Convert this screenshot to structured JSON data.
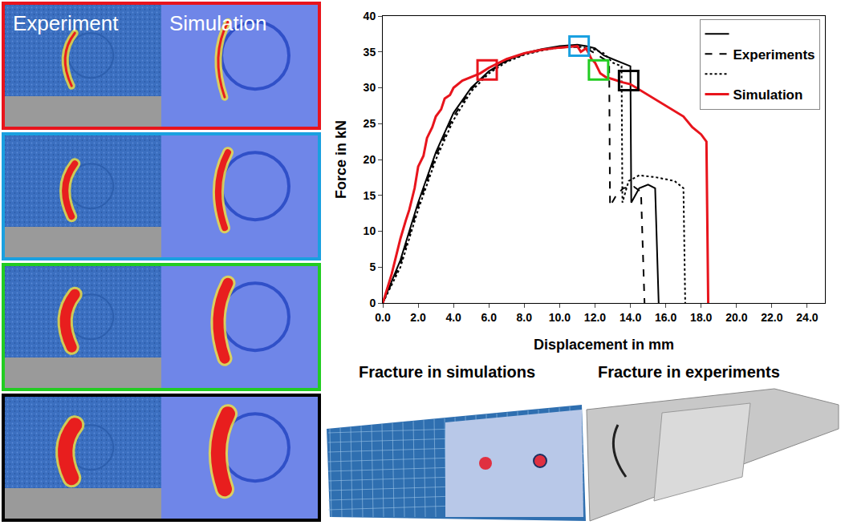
{
  "chart_data": {
    "type": "line",
    "xlabel": "Displacement in mm",
    "ylabel": "Force in kN",
    "xlim": [
      0,
      25
    ],
    "ylim": [
      0,
      40
    ],
    "xticks": [
      {
        "value": 0,
        "label": "0.0"
      },
      {
        "value": 2,
        "label": "2.0"
      },
      {
        "value": 4,
        "label": "4.0"
      },
      {
        "value": 6,
        "label": "6.0"
      },
      {
        "value": 8,
        "label": "8.0"
      },
      {
        "value": 10,
        "label": "10.0"
      },
      {
        "value": 12,
        "label": "12.0"
      },
      {
        "value": 14,
        "label": "14.0"
      },
      {
        "value": 16,
        "label": "16.0"
      },
      {
        "value": 18,
        "label": "18.0"
      },
      {
        "value": 20,
        "label": "20.0"
      },
      {
        "value": 22,
        "label": "22.0"
      },
      {
        "value": 24,
        "label": "24.0"
      }
    ],
    "yticks": [
      0,
      5,
      10,
      15,
      20,
      25,
      30,
      35,
      40
    ],
    "grid": false,
    "legend": "top-right",
    "series": [
      {
        "name": null,
        "color": "#000000",
        "line_style": "solid",
        "x": [
          0,
          1,
          2,
          3,
          4,
          5,
          6,
          7,
          8,
          9,
          10,
          11,
          11.5,
          12,
          12.5,
          13,
          13.5,
          14,
          14.05,
          14.5,
          15,
          15.4,
          15.6
        ],
        "values": [
          0,
          6,
          14,
          21,
          26.5,
          30,
          32.3,
          33.8,
          34.8,
          35.4,
          35.8,
          36,
          35.8,
          35.5,
          34.5,
          34,
          33.5,
          33,
          14,
          16,
          16.5,
          16,
          0
        ]
      },
      {
        "name": "Experiments",
        "color": "#000000",
        "line_style": "dashed",
        "x": [
          0,
          1,
          2,
          3,
          4,
          5,
          6,
          7,
          8,
          9,
          10,
          11,
          11.5,
          12,
          12.5,
          12.8,
          12.85,
          13.2,
          13.6,
          14.2,
          14.6,
          14.8
        ],
        "values": [
          0,
          5.5,
          13.5,
          20.5,
          26,
          29.8,
          32.2,
          33.7,
          34.7,
          35.3,
          35.6,
          35.7,
          35.5,
          34.8,
          34,
          33.5,
          13.5,
          15,
          16,
          16.2,
          15.5,
          0
        ]
      },
      {
        "name": null,
        "color": "#000000",
        "line_style": "dotted",
        "x": [
          0,
          1,
          2,
          3,
          4,
          5,
          6,
          7,
          8,
          9,
          10,
          11,
          12,
          12.5,
          13,
          13.5,
          13.55,
          13.9,
          14.5,
          15.5,
          16.5,
          17,
          17.1
        ],
        "values": [
          0,
          5,
          13,
          20,
          25.5,
          29.5,
          32,
          33.6,
          34.6,
          35.2,
          35.6,
          35.8,
          35.3,
          34.8,
          33.5,
          33,
          14,
          17,
          17.8,
          17.5,
          17,
          16,
          0
        ]
      },
      {
        "name": "Simulation",
        "color": "#e8141c",
        "line_style": "solid",
        "x": [
          0,
          0.5,
          0.8,
          1,
          1.3,
          1.5,
          1.8,
          2,
          2.3,
          2.5,
          2.8,
          3,
          3.3,
          3.5,
          3.8,
          4,
          4.5,
          5,
          5.5,
          6,
          7,
          8,
          9,
          10,
          10.5,
          11,
          11.2,
          11.5,
          11.8,
          12,
          12.3,
          12.6,
          13,
          13.5,
          14,
          15,
          16,
          17,
          17.5,
          18,
          18.3,
          18.4
        ],
        "values": [
          0,
          4,
          7,
          9,
          11.5,
          13,
          16,
          19,
          20.5,
          23,
          24.5,
          26,
          27,
          28.5,
          29,
          30,
          31,
          31.5,
          32,
          32.8,
          34,
          34.8,
          35.3,
          35.6,
          35.7,
          35.8,
          35,
          35.5,
          34,
          33.5,
          32,
          31.5,
          31.2,
          30.8,
          30.5,
          29,
          27.5,
          26,
          24.5,
          23.5,
          22.5,
          0
        ]
      }
    ],
    "highlights": [
      {
        "x": 5.9,
        "y": 32.5,
        "color": "#e8141c"
      },
      {
        "x": 11.1,
        "y": 35.8,
        "color": "#1aa0e0"
      },
      {
        "x": 12.2,
        "y": 32.5,
        "color": "#22cc22"
      },
      {
        "x": 13.9,
        "y": 31,
        "color": "#000000"
      }
    ]
  },
  "panels": {
    "colors": [
      "#e8141c",
      "#1aa0e0",
      "#22cc22",
      "#000000"
    ],
    "left_label": "Experiment",
    "right_label": "Simulation"
  },
  "fracture": {
    "simulation": "Fracture in simulations",
    "experiment": "Fracture in experiments"
  }
}
